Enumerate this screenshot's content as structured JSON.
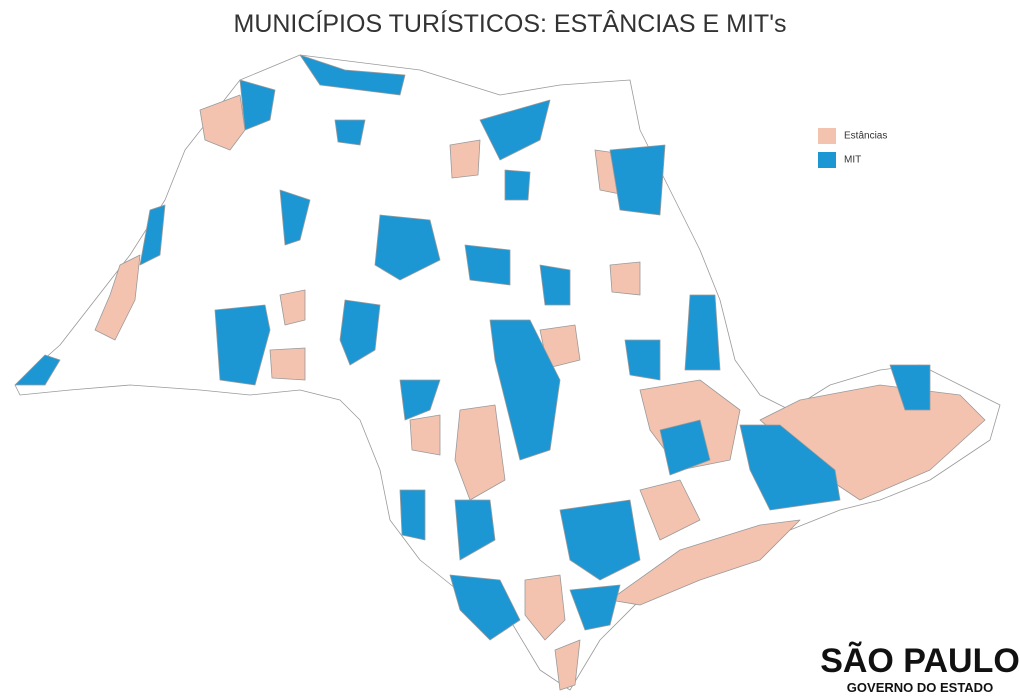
{
  "title": "MUNICÍPIOS TURÍSTICOS: ESTÂNCIAS E MIT's",
  "legend": [
    {
      "label": "Estâncias",
      "color": "#f3c3b0"
    },
    {
      "label": "MIT",
      "color": "#1c97d3"
    }
  ],
  "logo": {
    "name": "SÃO PAULO",
    "subtitle": "GOVERNO DO ESTADO"
  }
}
